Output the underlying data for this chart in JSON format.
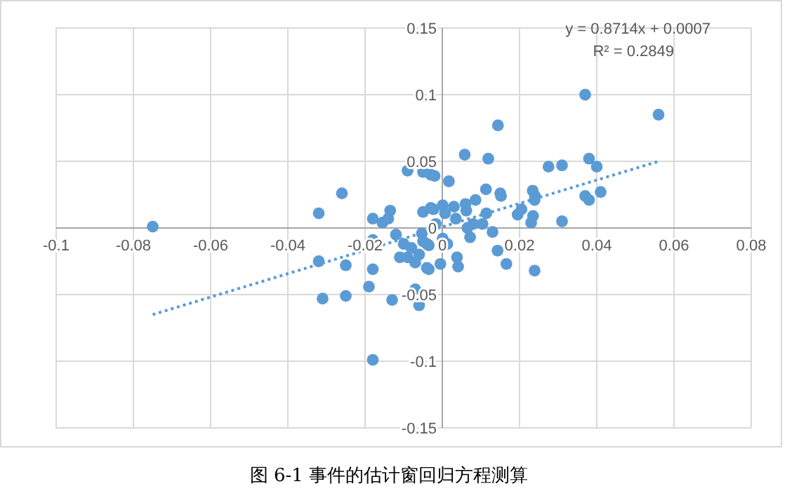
{
  "chart_data": {
    "type": "scatter",
    "annotations": [
      "y = 0.8714x + 0.0007",
      "R² = 0.2849",
      "图 6-1  事件的估计窗回归方程测算"
    ],
    "xlim": [
      -0.1,
      0.08
    ],
    "xticks": [
      -0.1,
      -0.08,
      -0.06,
      -0.04,
      -0.02,
      0,
      0.02,
      0.04,
      0.06,
      0.08
    ],
    "ylim": [
      -0.15,
      0.15
    ],
    "yticks": [
      -0.15,
      -0.1,
      -0.05,
      0,
      0.05,
      0.1,
      0.15
    ],
    "grid": true,
    "series": [
      {
        "type": "scatter",
        "color": "#5b9bd5",
        "marker": "circle",
        "x": [
          -0.075,
          -0.026,
          -0.032,
          -0.032,
          -0.031,
          -0.025,
          -0.025,
          -0.018,
          -0.019,
          -0.018,
          -0.018,
          -0.018,
          -0.0135,
          -0.014,
          -0.0155,
          -0.012,
          -0.009,
          -0.013,
          -0.007,
          -0.006,
          -0.01,
          -0.008,
          -0.006,
          -0.009,
          -0.007,
          -0.005,
          -0.011,
          -0.005,
          -0.003,
          -0.005,
          -0.003,
          -0.004,
          -0.004,
          0.037,
          0.056,
          0.0144,
          0.0058,
          0.0119,
          0.0275,
          0.031,
          0.038,
          0.04,
          0.041,
          0.037,
          0.038,
          -0.002,
          0.0017,
          0.0113,
          0.015,
          0.0152,
          0.0234,
          0.0239,
          0.024,
          0.0205,
          0.0195,
          0.0235,
          0.023,
          0.031,
          0.0086,
          0.006,
          0.0062,
          0.003,
          0.0001,
          -0.0023,
          0.0007,
          0.0114,
          0.0035,
          -0.0017,
          0.008,
          0.0065,
          0.0104,
          0.0072,
          0.013,
          0.0143,
          0.0166,
          0.0239,
          -0.0035,
          0.0001,
          0.0013,
          -0.0005,
          0.0038,
          0.0041,
          -0.0035,
          -0.0053
        ],
        "values": [
          0.001,
          0.026,
          0.011,
          -0.025,
          -0.053,
          -0.028,
          -0.051,
          0.007,
          -0.044,
          -0.099,
          -0.009,
          -0.031,
          0.013,
          0.007,
          0.004,
          -0.005,
          0.043,
          -0.054,
          -0.046,
          -0.058,
          -0.012,
          -0.015,
          -0.02,
          -0.022,
          -0.026,
          -0.01,
          -0.022,
          0.042,
          0.04,
          0.012,
          0.015,
          -0.012,
          -0.03,
          0.1,
          0.085,
          0.077,
          0.055,
          0.052,
          0.046,
          0.047,
          0.052,
          0.046,
          0.027,
          0.024,
          0.021,
          0.039,
          0.035,
          0.029,
          0.026,
          0.024,
          0.028,
          0.021,
          0.024,
          0.014,
          0.01,
          0.009,
          0.004,
          0.005,
          0.021,
          0.018,
          0.013,
          0.016,
          0.017,
          0.014,
          0.011,
          0.011,
          0.007,
          0.003,
          0.003,
          0.0,
          0.003,
          -0.007,
          -0.003,
          -0.017,
          -0.027,
          -0.032,
          -0.013,
          -0.008,
          -0.012,
          -0.027,
          -0.022,
          -0.029,
          -0.031,
          -0.004
        ]
      },
      {
        "type": "line",
        "color": "#5b9bd5",
        "line_style": "dotted",
        "marker": "none",
        "x": [
          -0.075,
          0.056
        ],
        "values": [
          -0.065,
          0.05
        ]
      }
    ]
  }
}
